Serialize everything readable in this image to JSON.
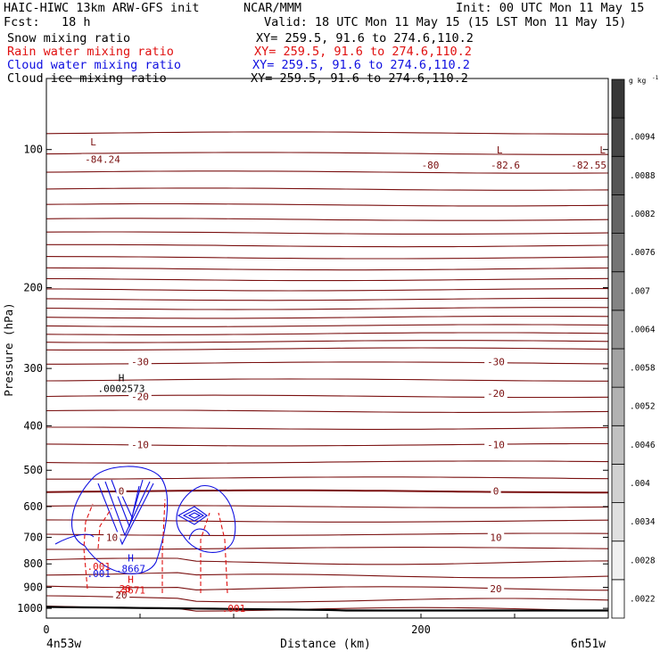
{
  "header": {
    "model": "HAIC-HIWC 13km ARW-GFS init",
    "org": "NCAR/MMM",
    "init": "Init: 00 UTC Mon 11 May 15",
    "fcst": "Fcst:   18 h",
    "valid": "Valid: 18 UTC Mon 11 May 15 (15 LST Mon 11 May 15)"
  },
  "fields": [
    {
      "name": "Snow mixing ratio",
      "xy": "XY= 259.5, 91.6 to 274.6,110.2",
      "color": "#000000"
    },
    {
      "name": "Rain water mixing ratio",
      "xy": "XY= 259.5, 91.6 to 274.6,110.2",
      "color": "#e01010"
    },
    {
      "name": "Cloud water mixing ratio",
      "xy": "XY= 259.5, 91.6 to 274.6,110.2",
      "color": "#1010e0"
    },
    {
      "name": "Cloud ice mixing ratio",
      "xy": "XY= 259.5, 91.6 to 274.6,110.2",
      "color": "#000000"
    }
  ],
  "chart_data": {
    "type": "contour",
    "xlabel": "Distance (km)",
    "ylabel": "Pressure (hPa)",
    "xlim": [
      0,
      300
    ],
    "ylim": [
      1050,
      70
    ],
    "y_scale": "log",
    "xticks": [
      0,
      200
    ],
    "yticks": [
      100,
      200,
      300,
      400,
      500,
      600,
      700,
      800,
      900,
      1000
    ],
    "x_endpoints": {
      "left": "4n53w",
      "right": "6n51w"
    },
    "temperature_labels": [
      {
        "value": "-84.24",
        "x": 30,
        "p": 105
      },
      {
        "value": "-80",
        "x": 205,
        "p": 108
      },
      {
        "value": "-82.6",
        "x": 245,
        "p": 108
      },
      {
        "value": "-82.55",
        "x": 300,
        "p": 108
      },
      {
        "value": "-30",
        "x": 50,
        "p": 290
      },
      {
        "value": "-30",
        "x": 240,
        "p": 290
      },
      {
        "value": "-20",
        "x": 50,
        "p": 345
      },
      {
        "value": "-20",
        "x": 240,
        "p": 340
      },
      {
        "value": "-10",
        "x": 50,
        "p": 440
      },
      {
        "value": "-10",
        "x": 240,
        "p": 440
      },
      {
        "value": "0",
        "x": 40,
        "p": 555
      },
      {
        "value": "0",
        "x": 240,
        "p": 555
      },
      {
        "value": "10",
        "x": 35,
        "p": 700
      },
      {
        "value": "10",
        "x": 240,
        "p": 700
      },
      {
        "value": "20",
        "x": 40,
        "p": 935
      },
      {
        "value": "20",
        "x": 240,
        "p": 905
      }
    ],
    "extrema": [
      {
        "label": "L",
        "x": 25,
        "p": 98
      },
      {
        "label": "L",
        "x": 242,
        "p": 102
      },
      {
        "label": "L",
        "x": 297,
        "p": 102
      },
      {
        "label": "H",
        "value": ".0002573",
        "x": 40,
        "p": 320
      },
      {
        "label": "H",
        "value": ".8667",
        "x": 45,
        "p": 790
      },
      {
        "label": "H",
        "value": ".5671",
        "x": 45,
        "p": 880
      }
    ],
    "field_labels": [
      {
        "value": ".001",
        "color": "red",
        "x": 28,
        "p": 810
      },
      {
        "value": ".001",
        "color": "blue",
        "x": 28,
        "p": 840
      },
      {
        "value": ".001",
        "color": "red",
        "x": 100,
        "p": 1000
      },
      {
        "value": "20",
        "color": "red",
        "x": 42,
        "p": 905
      }
    ],
    "colorbar": {
      "unit": "g kg",
      "unit_exp": "-1",
      "levels": [
        ".0022",
        ".0028",
        ".0034",
        ".004",
        ".0046",
        ".0052",
        ".0058",
        ".0064",
        ".007",
        ".0076",
        ".0082",
        ".0088",
        ".0094"
      ]
    }
  }
}
